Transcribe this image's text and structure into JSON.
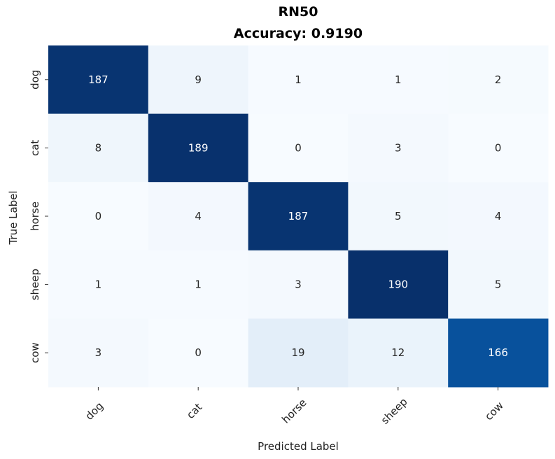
{
  "chart_data": {
    "type": "heatmap",
    "title": "RN50",
    "subtitle": "Accuracy: 0.9190",
    "xlabel": "Predicted Label",
    "ylabel": "True Label",
    "x_categories": [
      "dog",
      "cat",
      "horse",
      "sheep",
      "cow"
    ],
    "y_categories": [
      "dog",
      "cat",
      "horse",
      "sheep",
      "cow"
    ],
    "values": [
      [
        187,
        9,
        1,
        1,
        2
      ],
      [
        8,
        189,
        0,
        3,
        0
      ],
      [
        0,
        4,
        187,
        5,
        4
      ],
      [
        1,
        1,
        3,
        190,
        5
      ],
      [
        3,
        0,
        19,
        12,
        166
      ]
    ],
    "vmin": 0,
    "vmax": 190,
    "colormap": "Blues",
    "colorbar": false,
    "grid": false
  }
}
